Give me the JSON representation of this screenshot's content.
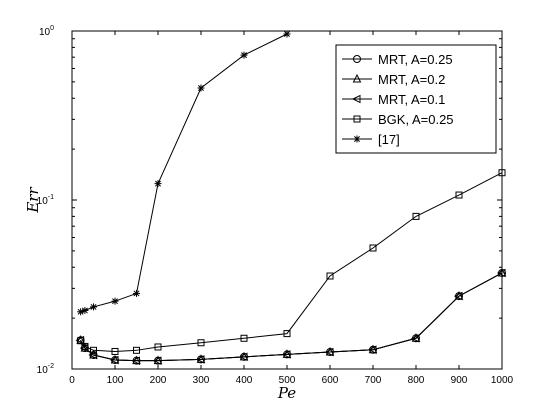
{
  "chart_data": {
    "type": "line",
    "title": "",
    "xlabel": "Pe",
    "ylabel": "Err",
    "xscale": "linear",
    "yscale": "log",
    "xlim": [
      0,
      1000
    ],
    "ylim": [
      0.01,
      1
    ],
    "grid": false,
    "legend_position": "top-right",
    "x_ticks": [
      "0",
      "100",
      "200",
      "300",
      "400",
      "500",
      "600",
      "700",
      "800",
      "900",
      "1000"
    ],
    "y_ticks": [
      {
        "base": "10",
        "exp": "-2"
      },
      {
        "base": "10",
        "exp": "-1"
      },
      {
        "base": "10",
        "exp": "0"
      }
    ],
    "series": [
      {
        "name": "MRT, A=0.25",
        "marker": "circle",
        "x": [
          20,
          30,
          50,
          100,
          150,
          200,
          300,
          400,
          500,
          600,
          700,
          800,
          900,
          1000
        ],
        "y": [
          0.0148,
          0.0133,
          0.0121,
          0.0113,
          0.0112,
          0.0112,
          0.0114,
          0.0118,
          0.0122,
          0.0126,
          0.013,
          0.0152,
          0.027,
          0.037
        ]
      },
      {
        "name": "MRT, A=0.2",
        "marker": "triangle-up",
        "x": [
          20,
          30,
          50,
          100,
          150,
          200,
          300,
          400,
          500,
          600,
          700,
          800,
          900,
          1000
        ],
        "y": [
          0.0148,
          0.0133,
          0.0121,
          0.0113,
          0.0112,
          0.0112,
          0.0114,
          0.0118,
          0.0122,
          0.0126,
          0.013,
          0.0152,
          0.027,
          0.037
        ]
      },
      {
        "name": "MRT, A=0.1",
        "marker": "triangle-left",
        "x": [
          20,
          30,
          50,
          100,
          150,
          200,
          300,
          400,
          500,
          600,
          700,
          800,
          900,
          1000
        ],
        "y": [
          0.0148,
          0.0133,
          0.0121,
          0.0113,
          0.0112,
          0.0112,
          0.0114,
          0.0118,
          0.0122,
          0.0126,
          0.013,
          0.0152,
          0.027,
          0.037
        ]
      },
      {
        "name": "BGK, A=0.25",
        "marker": "square",
        "x": [
          20,
          30,
          50,
          100,
          150,
          200,
          300,
          400,
          500,
          600,
          700,
          800,
          900,
          1000
        ],
        "y": [
          0.0147,
          0.0136,
          0.0129,
          0.0127,
          0.0129,
          0.0135,
          0.0143,
          0.0152,
          0.0162,
          0.0355,
          0.052,
          0.08,
          0.107,
          0.145
        ]
      },
      {
        "name": "[17]",
        "marker": "star",
        "x": [
          20,
          30,
          50,
          100,
          150,
          200,
          300,
          400,
          500
        ],
        "y": [
          0.0218,
          0.0222,
          0.0233,
          0.0252,
          0.028,
          0.125,
          0.46,
          0.72,
          0.96
        ]
      }
    ]
  }
}
